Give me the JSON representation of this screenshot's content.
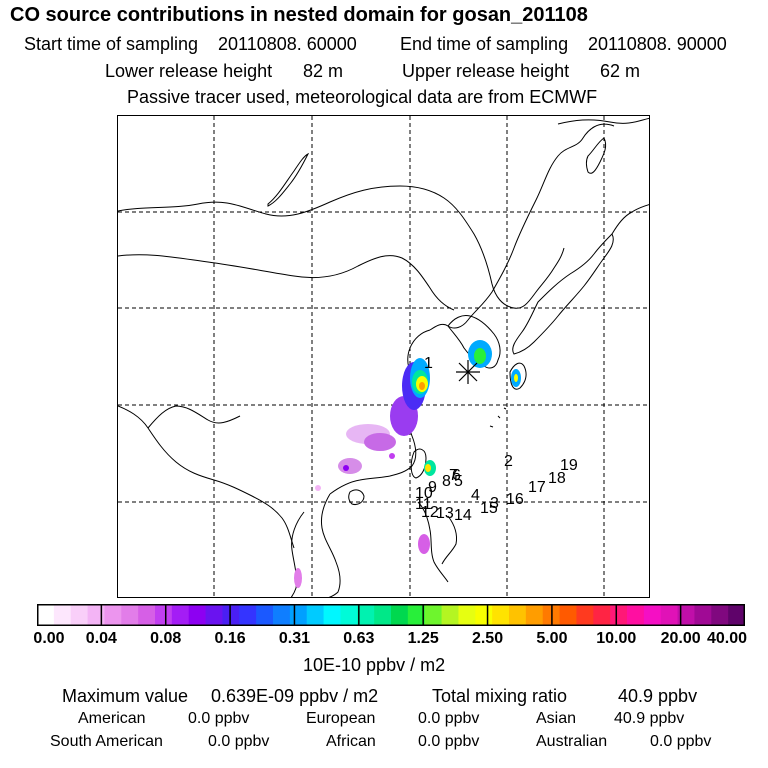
{
  "header": {
    "title": "CO  source contributions in nested domain for gosan_201108",
    "start_label": "Start time of sampling",
    "start_value": "20110808. 60000",
    "end_label": "End time of sampling",
    "end_value": "20110808. 90000",
    "lower_label": "Lower release height",
    "lower_value": "82 m",
    "upper_label": "Upper release height",
    "upper_value": "62 m",
    "note": "Passive tracer used, meteorological data are from ECMWF"
  },
  "map": {
    "receptor_marker": "asterisk-icon",
    "trajectory_labels": [
      "1",
      "2",
      "3",
      "4",
      "5",
      "6",
      "7",
      "8",
      "9",
      "10",
      "11",
      "12",
      "13",
      "14",
      "15",
      "16",
      "17",
      "18",
      "19"
    ]
  },
  "colorbar": {
    "colors": [
      "#ffffff",
      "#fde7fd",
      "#f9cff9",
      "#f3b4f5",
      "#ec95ee",
      "#e27de9",
      "#d65fe6",
      "#c13ef0",
      "#a41df5",
      "#8d00f2",
      "#6a13f0",
      "#4a1ff3",
      "#3434ff",
      "#1b59ff",
      "#0f7eff",
      "#00a0ff",
      "#00cbff",
      "#00f7ff",
      "#00fbd8",
      "#00f2b0",
      "#00e888",
      "#00d84f",
      "#28ef3a",
      "#6ef52d",
      "#b4f522",
      "#e6ff11",
      "#f8ff00",
      "#ffe300",
      "#ffc200",
      "#ff9d00",
      "#ff7a00",
      "#ff5a00",
      "#ff3a1f",
      "#ff2444",
      "#ff1877",
      "#ff0fa1",
      "#f50fc4",
      "#e012b7",
      "#c00fa9",
      "#a00a95",
      "#80087f",
      "#5f036a"
    ],
    "tick_labels": [
      "0.00",
      "0.04",
      "0.08",
      "0.16",
      "0.31",
      "0.63",
      "1.25",
      "2.50",
      "5.00",
      "10.00",
      "20.00",
      "40.00"
    ],
    "unit": "10E-10 ppbv / m2"
  },
  "summary": {
    "max_label": "Maximum value",
    "max_value": "0.639E-09 ppbv / m2",
    "total_label": "Total mixing ratio",
    "total_value": "40.9 ppbv"
  },
  "regions": [
    {
      "name": "American",
      "value": "0.0 ppbv"
    },
    {
      "name": "European",
      "value": "0.0 ppbv"
    },
    {
      "name": "Asian",
      "value": "40.9 ppbv"
    },
    {
      "name": "South American",
      "value": "0.0 ppbv"
    },
    {
      "name": "African",
      "value": "0.0 ppbv"
    },
    {
      "name": "Australian",
      "value": "0.0 ppbv"
    }
  ]
}
